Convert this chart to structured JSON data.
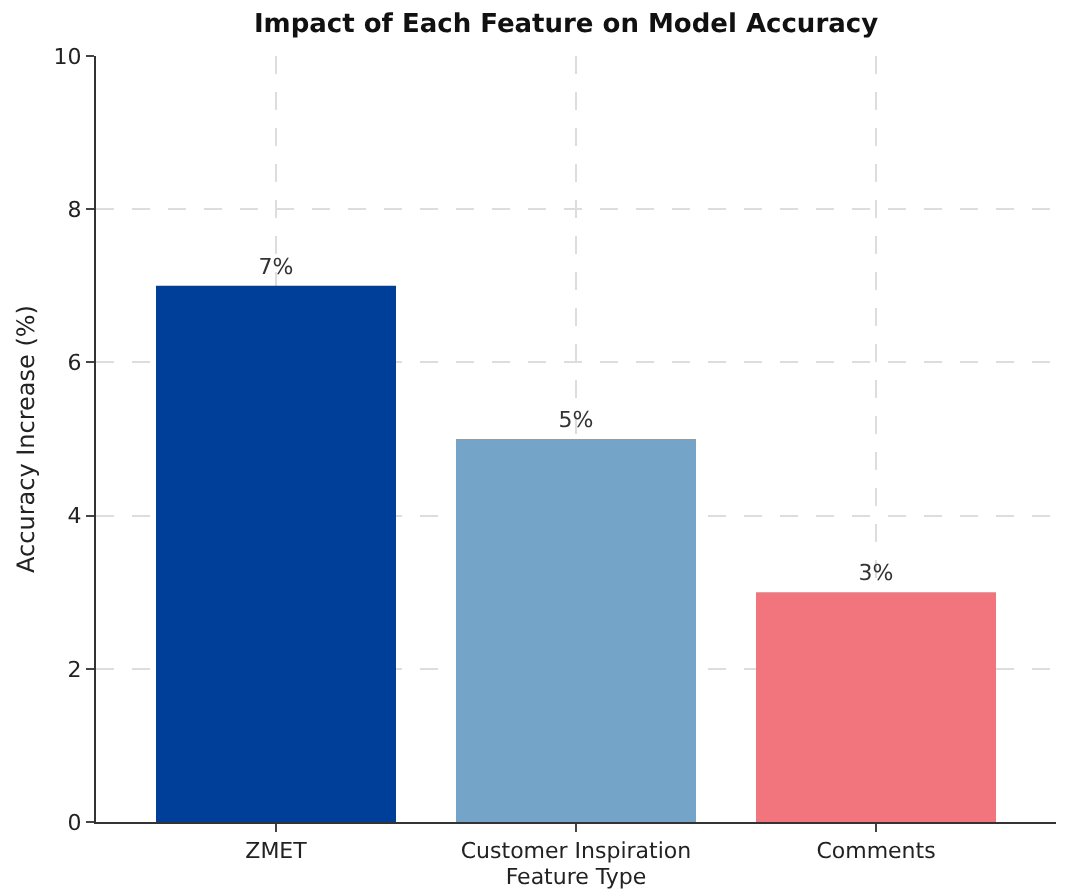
{
  "chart_data": {
    "type": "bar",
    "title": "Impact of Each Feature on Model Accuracy",
    "xlabel": "Feature Type",
    "ylabel": "Accuracy Increase (%)",
    "categories": [
      "ZMET",
      "Customer Inspiration",
      "Comments"
    ],
    "values": [
      7,
      5,
      3
    ],
    "colors": [
      "#003f99",
      "#74a5c9",
      "#f2747d"
    ],
    "value_labels": [
      "7%",
      "5%",
      "3%"
    ],
    "ylim": [
      0,
      10
    ],
    "yticks": [
      0,
      2,
      4,
      6,
      8,
      10
    ],
    "grid": true
  }
}
